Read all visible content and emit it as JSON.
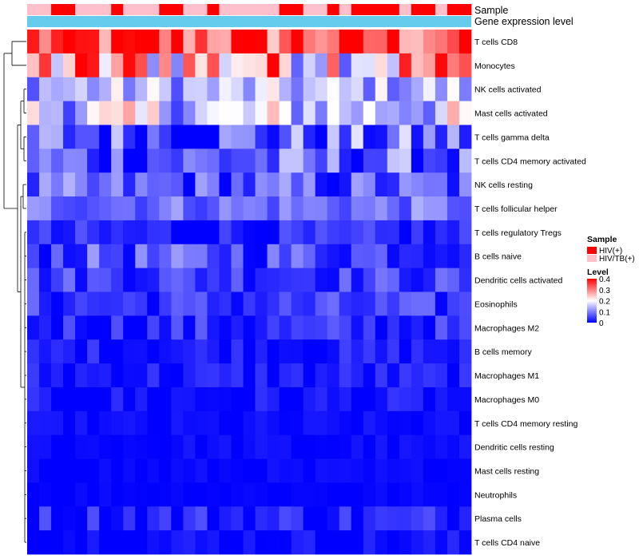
{
  "chart_data": {
    "type": "heatmap",
    "annotation_rows": [
      "Sample",
      "Gene expression level"
    ],
    "row_labels": [
      "T cells CD8",
      "Monocytes",
      "NK cells activated",
      "Mast cells activated",
      "T cells gamma delta",
      "T cells CD4 memory activated",
      "NK cells resting",
      "T cells follicular helper",
      "T cells regulatory  Tregs",
      "B cells naive",
      "Dendritic cells activated",
      "Eosinophils",
      "Macrophages M2",
      "B cells memory",
      "Macrophages M1",
      "Macrophages M0",
      "T cells CD4 memory resting",
      "Dendritic cells resting",
      "Mast cells resting",
      "Neutrophils",
      "Plasma cells",
      "T cells CD4 naive"
    ],
    "n_columns": 37,
    "sample_groups": [
      "HIV(+)",
      "HIV/TB(+)"
    ],
    "sample_annotation": [
      1,
      1,
      0,
      0,
      1,
      1,
      1,
      0,
      1,
      1,
      1,
      0,
      0,
      1,
      1,
      0,
      1,
      1,
      1,
      1,
      1,
      0,
      0,
      1,
      1,
      0,
      1,
      0,
      0,
      0,
      0,
      1,
      0,
      0,
      1,
      0,
      0
    ],
    "value_range": [
      0,
      0.4
    ],
    "row_means": [
      0.34,
      0.26,
      0.14,
      0.16,
      0.07,
      0.07,
      0.06,
      0.09,
      0.02,
      0.06,
      0.05,
      0.04,
      0.03,
      0.02,
      0.02,
      0.01,
      0.005,
      0.005,
      0.003,
      0.003,
      0.025,
      0.01
    ],
    "row_spread": [
      0.08,
      0.12,
      0.05,
      0.07,
      0.07,
      0.06,
      0.05,
      0.03,
      0.03,
      0.04,
      0.03,
      0.03,
      0.03,
      0.02,
      0.02,
      0.02,
      0.01,
      0.01,
      0.008,
      0.005,
      0.03,
      0.015
    ]
  },
  "legend": {
    "sample_title": "Sample",
    "sample_items": [
      {
        "label": "HIV(+)",
        "color": "#ff0000"
      },
      {
        "label": "HIV/TB(+)",
        "color": "#ffc0cb"
      }
    ],
    "level_title": "Level",
    "level_ticks": [
      {
        "label": "0.4",
        "value": 0.4
      },
      {
        "label": "0.3",
        "value": 0.3
      },
      {
        "label": "0.2",
        "value": 0.2
      },
      {
        "label": "0.1",
        "value": 0.1
      },
      {
        "label": "0",
        "value": 0
      }
    ],
    "level_colors": {
      "low": "#0000ff",
      "mid": "#ffffff",
      "high": "#ff0000"
    }
  },
  "expression_bar_color": "#66ccee"
}
